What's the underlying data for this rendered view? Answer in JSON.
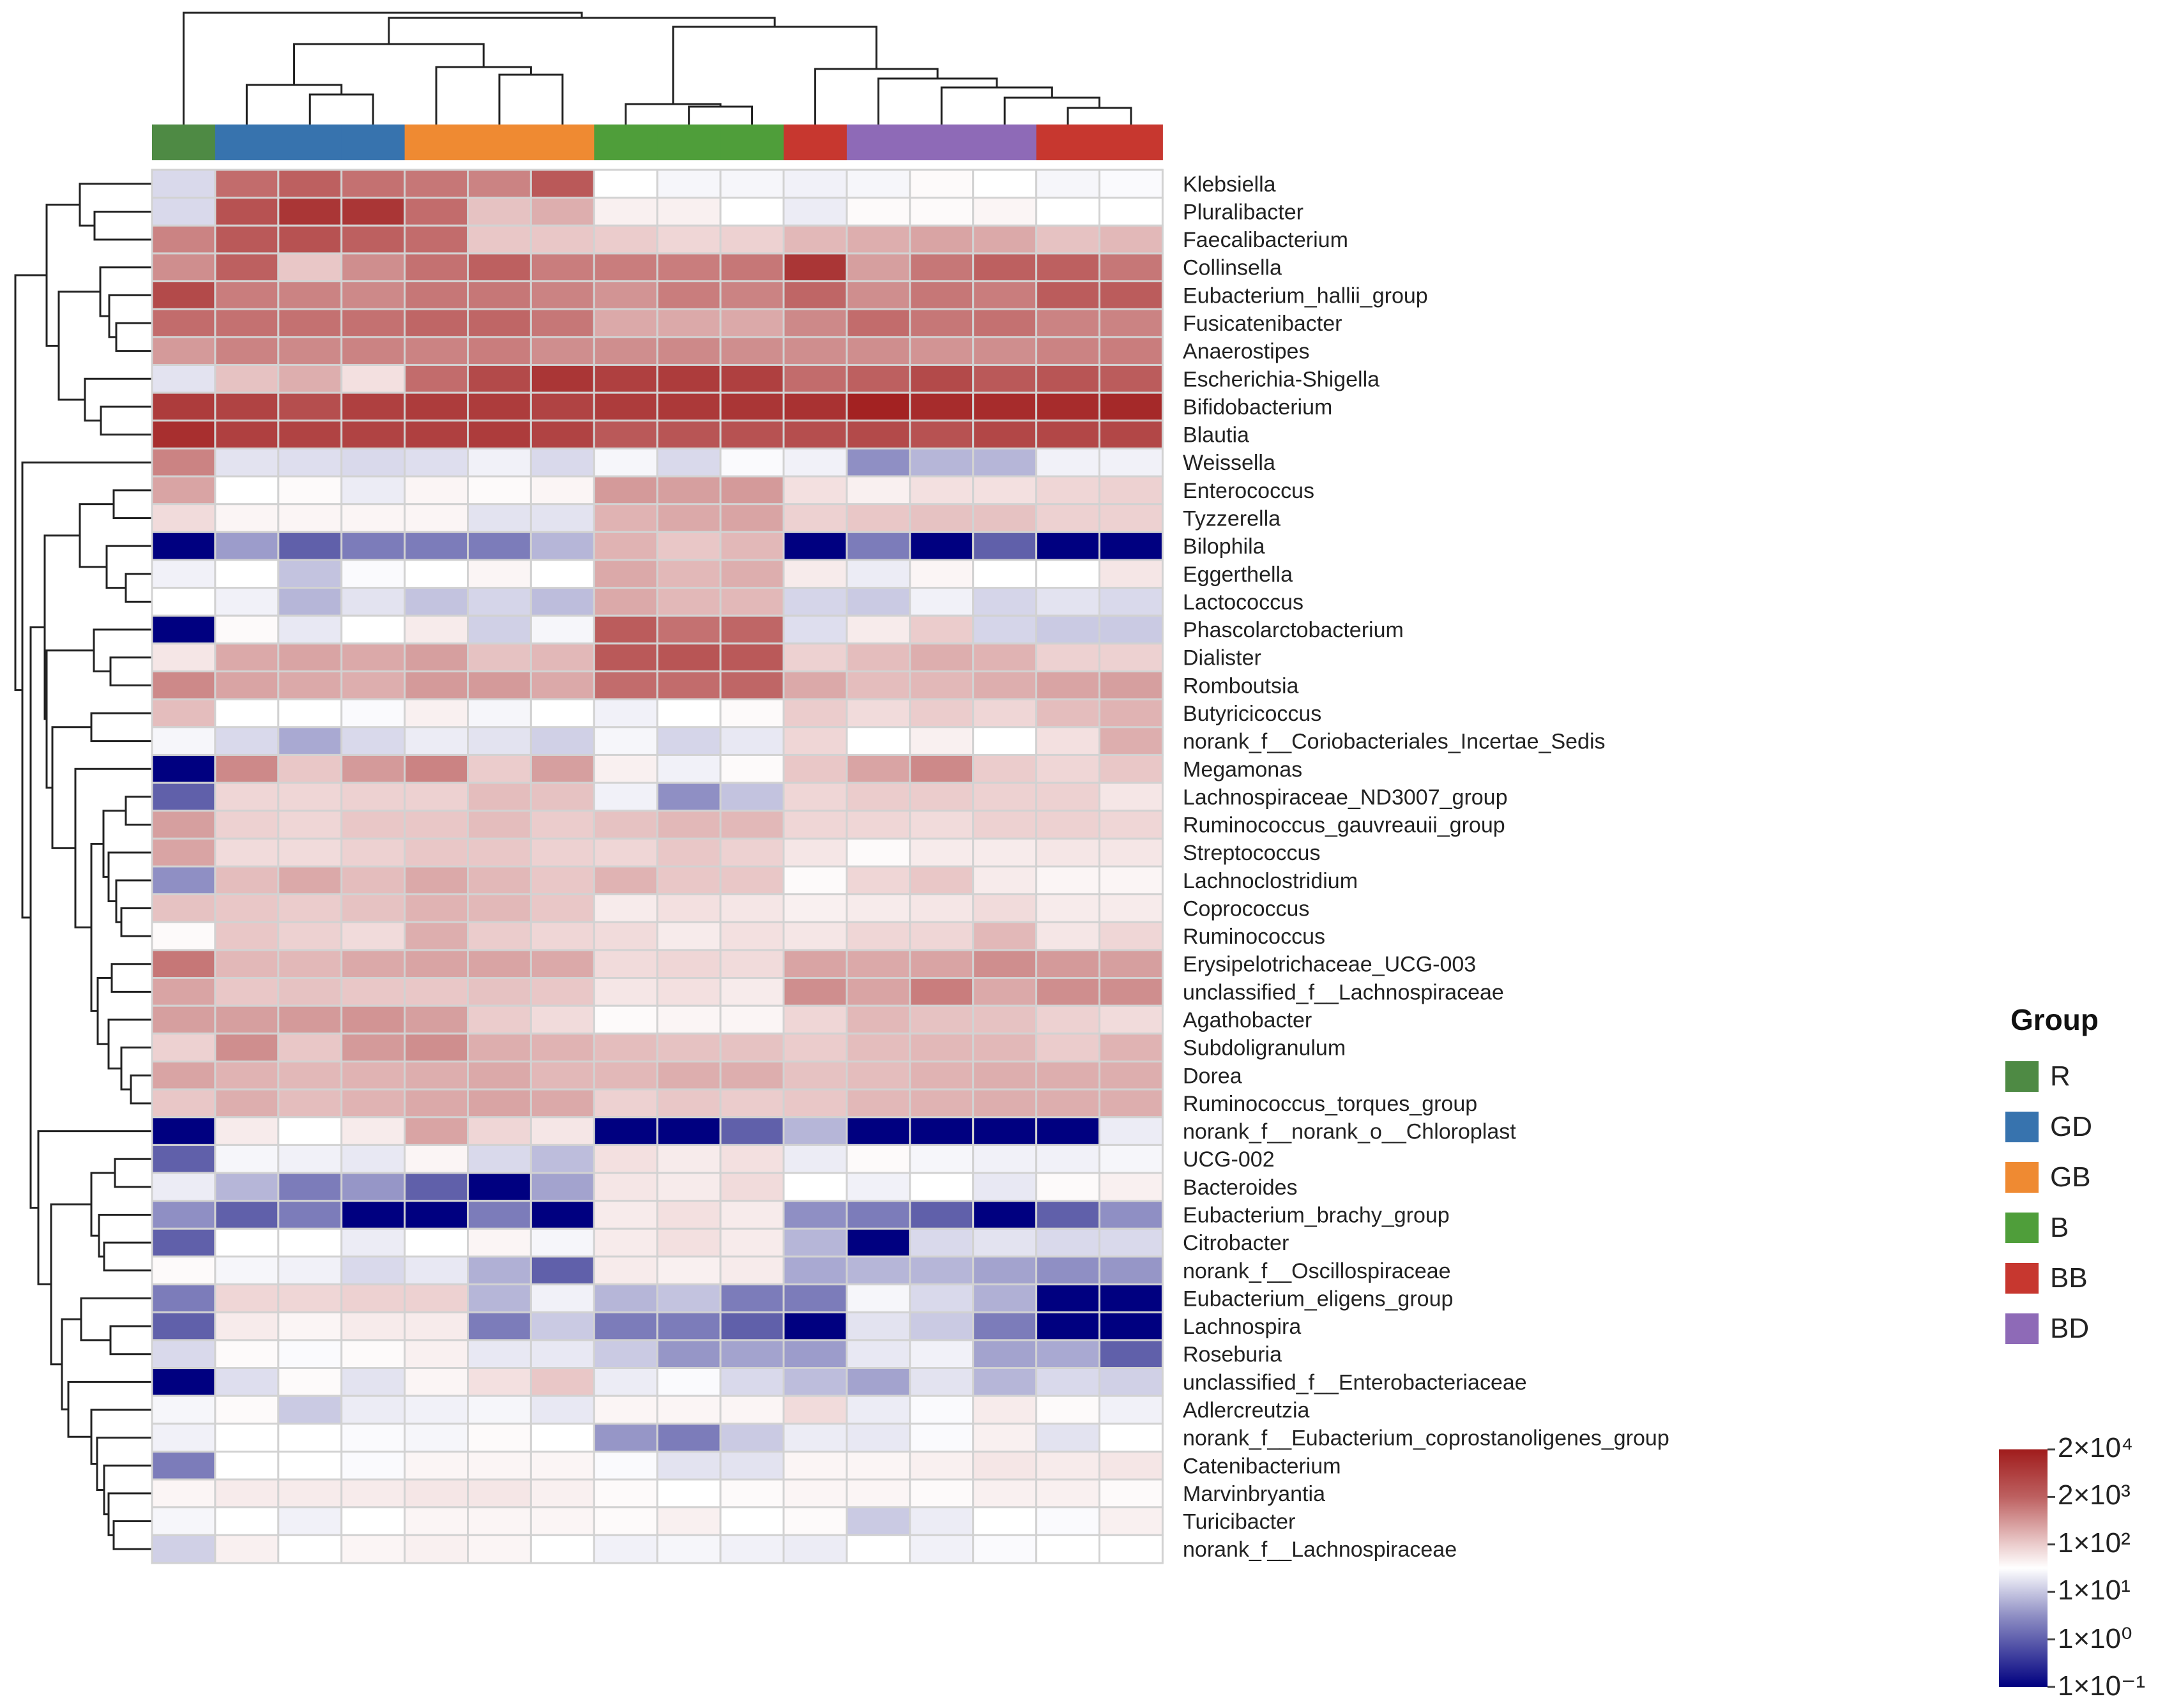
{
  "chart_data": {
    "type": "heatmap",
    "title": "",
    "value_encoding": "colorbar position (0 = 1×10⁻¹, 1 = 1×10⁰, 2 = 1×10¹, 3 = 1×10², 4 = 2×10³, 5 = 2×10⁴)",
    "colorbar_ticks": [
      "2×10⁴",
      "2×10³",
      "1×10²",
      "1×10¹",
      "1×10⁰",
      "1×10⁻¹"
    ],
    "colorbar_low": "#000080",
    "colorbar_mid": "#ffffff",
    "colorbar_high": "#a01c1c",
    "legend_title": "Group",
    "groups": [
      {
        "name": "R",
        "color": "#4e8a44"
      },
      {
        "name": "GD",
        "color": "#3773ae"
      },
      {
        "name": "GB",
        "color": "#ef8a32"
      },
      {
        "name": "B",
        "color": "#4f9e3a"
      },
      {
        "name": "BB",
        "color": "#c7372f"
      },
      {
        "name": "BD",
        "color": "#8e6ab7"
      }
    ],
    "column_groups": [
      "R",
      "GD",
      "GD",
      "GD",
      "GB",
      "GB",
      "GB",
      "B",
      "B",
      "B",
      "BB",
      "BD",
      "BD",
      "BD",
      "BB",
      "BB"
    ],
    "rows": [
      "Klebsiella",
      "Pluralibacter",
      "Faecalibacterium",
      "Collinsella",
      "Eubacterium_hallii_group",
      "Fusicatenibacter",
      "Anaerostipes",
      "Escherichia-Shigella",
      "Bifidobacterium",
      "Blautia",
      "Weissella",
      "Enterococcus",
      "Tyzzerella",
      "Bilophila",
      "Eggerthella",
      "Lactococcus",
      "Phascolarctobacterium",
      "Dialister",
      "Romboutsia",
      "Butyricicoccus",
      "norank_f__Coriobacteriales_Incertae_Sedis",
      "Megamonas",
      "Lachnospiraceae_ND3007_group",
      "Ruminococcus_gauvreauii_group",
      "Streptococcus",
      "Lachnoclostridium",
      "Coprococcus",
      "Ruminococcus",
      "Erysipelotrichaceae_UCG-003",
      "unclassified_f__Lachnospiraceae",
      "Agathobacter",
      "Subdoligranulum",
      "Dorea",
      "Ruminococcus_torques_group",
      "norank_f__norank_o__Chloroplast",
      "UCG-002",
      "Bacteroides",
      "Eubacterium_brachy_group",
      "Citrobacter",
      "norank_f__Oscillospiraceae",
      "Eubacterium_eligens_group",
      "Lachnospira",
      "Roseburia",
      "unclassified_f__Enterobacteriaceae",
      "Adlercreutzia",
      "norank_f__Eubacterium_coprostanoligenes_group",
      "Catenibacterium",
      "Marvinbryantia",
      "Turicibacter",
      "norank_f__Lachnospiraceae"
    ],
    "values": [
      [
        2.1,
        3.9,
        4.0,
        3.85,
        3.8,
        3.7,
        4.1,
        2.5,
        2.4,
        2.4,
        2.35,
        2.4,
        2.55,
        2.5,
        2.4,
        2.45
      ],
      [
        2.1,
        4.2,
        4.6,
        4.6,
        3.9,
        3.1,
        3.3,
        2.65,
        2.65,
        2.5,
        2.3,
        2.55,
        2.55,
        2.6,
        2.5,
        2.5
      ],
      [
        3.7,
        4.1,
        4.2,
        4.0,
        3.9,
        3.05,
        3.05,
        3.0,
        2.9,
        2.95,
        3.2,
        3.3,
        3.4,
        3.35,
        3.1,
        3.2
      ],
      [
        3.6,
        4.0,
        3.05,
        3.6,
        3.85,
        4.0,
        3.75,
        3.75,
        3.75,
        3.8,
        4.6,
        3.45,
        3.8,
        4.0,
        4.0,
        3.8
      ],
      [
        4.3,
        3.75,
        3.7,
        3.65,
        3.8,
        3.8,
        3.7,
        3.55,
        3.75,
        3.7,
        3.95,
        3.6,
        3.8,
        3.75,
        4.05,
        4.05
      ],
      [
        3.9,
        3.85,
        3.85,
        3.85,
        3.95,
        3.95,
        3.8,
        3.35,
        3.35,
        3.35,
        3.65,
        3.9,
        3.8,
        3.85,
        3.7,
        3.7
      ],
      [
        3.5,
        3.7,
        3.65,
        3.7,
        3.7,
        3.75,
        3.6,
        3.6,
        3.65,
        3.6,
        3.6,
        3.6,
        3.55,
        3.6,
        3.7,
        3.75
      ],
      [
        2.2,
        3.1,
        3.3,
        2.8,
        3.9,
        4.3,
        4.6,
        4.45,
        4.5,
        4.45,
        3.9,
        4.0,
        4.3,
        4.1,
        4.15,
        4.05
      ],
      [
        4.5,
        4.4,
        4.25,
        4.45,
        4.5,
        4.5,
        4.4,
        4.5,
        4.55,
        4.6,
        4.65,
        4.9,
        4.75,
        4.75,
        4.75,
        4.8
      ],
      [
        4.7,
        4.45,
        4.4,
        4.4,
        4.45,
        4.5,
        4.4,
        4.1,
        4.15,
        4.2,
        4.25,
        4.3,
        4.2,
        4.35,
        4.35,
        4.35
      ],
      [
        3.7,
        2.2,
        2.15,
        2.1,
        2.15,
        2.35,
        2.1,
        2.4,
        2.1,
        2.45,
        2.35,
        1.5,
        1.8,
        1.8,
        2.35,
        2.35
      ],
      [
        3.4,
        2.5,
        2.55,
        2.3,
        2.6,
        2.55,
        2.6,
        3.5,
        3.45,
        3.5,
        2.8,
        2.65,
        2.8,
        2.8,
        2.9,
        2.95
      ],
      [
        2.85,
        2.6,
        2.6,
        2.6,
        2.6,
        2.2,
        2.2,
        3.25,
        3.35,
        3.4,
        2.95,
        3.05,
        3.1,
        3.1,
        2.95,
        2.95
      ],
      [
        0,
        1.6,
        1.0,
        1.3,
        1.3,
        1.3,
        1.8,
        3.25,
        3.05,
        3.2,
        0,
        1.3,
        0,
        1.0,
        0,
        0
      ],
      [
        2.35,
        2.5,
        1.9,
        2.45,
        2.5,
        2.6,
        2.5,
        3.35,
        3.2,
        3.3,
        2.7,
        2.3,
        2.6,
        2.5,
        2.5,
        2.75
      ],
      [
        2.5,
        2.35,
        1.8,
        2.2,
        1.9,
        2.05,
        1.85,
        3.35,
        3.2,
        3.2,
        2.05,
        1.95,
        2.35,
        2.05,
        2.2,
        2.1
      ],
      [
        0,
        2.55,
        2.25,
        2.5,
        2.7,
        2.0,
        2.4,
        4.05,
        3.85,
        3.95,
        2.15,
        2.7,
        3.0,
        2.05,
        1.95,
        1.95
      ],
      [
        2.75,
        3.35,
        3.4,
        3.35,
        3.45,
        3.1,
        3.2,
        4.1,
        4.15,
        4.1,
        2.95,
        3.15,
        3.3,
        3.25,
        2.95,
        2.95
      ],
      [
        3.65,
        3.4,
        3.35,
        3.3,
        3.5,
        3.5,
        3.35,
        3.9,
        3.9,
        3.95,
        3.35,
        3.15,
        3.2,
        3.3,
        3.4,
        3.45
      ],
      [
        3.15,
        2.5,
        2.5,
        2.45,
        2.65,
        2.4,
        2.5,
        2.35,
        2.5,
        2.55,
        3.0,
        2.85,
        3.0,
        2.9,
        3.15,
        3.25
      ],
      [
        2.4,
        2.1,
        1.7,
        2.1,
        2.3,
        2.2,
        2.0,
        2.4,
        2.05,
        2.25,
        2.9,
        2.5,
        2.65,
        2.5,
        2.8,
        3.3
      ],
      [
        0,
        3.65,
        3.05,
        3.5,
        3.7,
        3.0,
        3.45,
        2.65,
        2.35,
        2.55,
        3.05,
        3.4,
        3.65,
        3.0,
        2.9,
        3.05
      ],
      [
        1.0,
        2.9,
        2.9,
        2.95,
        2.95,
        3.15,
        3.1,
        2.35,
        1.5,
        1.9,
        2.9,
        3.0,
        3.0,
        2.95,
        2.95,
        2.75
      ],
      [
        3.45,
        2.95,
        2.9,
        3.05,
        3.05,
        3.15,
        3.0,
        3.1,
        3.2,
        3.2,
        2.9,
        2.9,
        2.85,
        2.95,
        2.95,
        2.9
      ],
      [
        3.4,
        2.85,
        2.85,
        2.95,
        3.05,
        3.05,
        2.95,
        2.9,
        3.05,
        2.95,
        2.75,
        2.55,
        2.7,
        2.7,
        2.75,
        2.75
      ],
      [
        1.5,
        3.15,
        3.35,
        3.15,
        3.35,
        3.2,
        3.05,
        3.25,
        3.05,
        3.05,
        2.55,
        2.9,
        3.05,
        2.7,
        2.6,
        2.6
      ],
      [
        3.1,
        3.05,
        3.0,
        3.1,
        3.25,
        3.2,
        3.05,
        2.7,
        2.8,
        2.75,
        2.65,
        2.7,
        2.75,
        2.85,
        2.7,
        2.7
      ],
      [
        2.55,
        3.05,
        2.95,
        2.85,
        3.3,
        3.0,
        2.9,
        2.85,
        2.7,
        2.8,
        2.75,
        2.9,
        2.9,
        3.2,
        2.75,
        2.9
      ],
      [
        3.8,
        3.2,
        3.2,
        3.35,
        3.4,
        3.4,
        3.35,
        2.85,
        2.9,
        2.85,
        3.4,
        3.35,
        3.4,
        3.6,
        3.5,
        3.45
      ],
      [
        3.4,
        3.05,
        3.1,
        3.05,
        3.05,
        3.1,
        3.05,
        2.75,
        2.8,
        2.7,
        3.6,
        3.4,
        3.75,
        3.35,
        3.6,
        3.6
      ],
      [
        3.45,
        3.45,
        3.5,
        3.55,
        3.45,
        3.0,
        2.85,
        2.55,
        2.6,
        2.6,
        2.9,
        3.2,
        3.1,
        3.1,
        2.95,
        2.85
      ],
      [
        2.95,
        3.6,
        3.05,
        3.5,
        3.6,
        3.3,
        3.25,
        3.15,
        3.1,
        3.1,
        3.0,
        3.15,
        3.2,
        3.2,
        3.0,
        3.25
      ],
      [
        3.4,
        3.25,
        3.2,
        3.25,
        3.3,
        3.35,
        3.2,
        3.2,
        3.3,
        3.3,
        3.1,
        3.15,
        3.25,
        3.3,
        3.3,
        3.3
      ],
      [
        3.05,
        3.3,
        3.15,
        3.25,
        3.35,
        3.4,
        3.35,
        2.95,
        3.05,
        3.0,
        3.05,
        3.2,
        3.25,
        3.3,
        3.3,
        3.3
      ],
      [
        0,
        2.7,
        2.5,
        2.7,
        3.4,
        2.9,
        2.75,
        0,
        0,
        1.0,
        1.8,
        0,
        0,
        0,
        0,
        2.3
      ],
      [
        1.0,
        2.4,
        2.35,
        2.25,
        2.6,
        2.1,
        1.85,
        2.8,
        2.7,
        2.8,
        2.3,
        2.55,
        2.4,
        2.35,
        2.35,
        2.4
      ],
      [
        2.3,
        1.8,
        1.3,
        1.55,
        1.0,
        0,
        1.65,
        2.75,
        2.7,
        2.85,
        2.5,
        2.35,
        2.5,
        2.25,
        2.55,
        2.65
      ],
      [
        1.5,
        1.0,
        1.3,
        0,
        0,
        1.3,
        0,
        2.7,
        2.8,
        2.7,
        1.5,
        1.3,
        1.0,
        0,
        1.0,
        1.5
      ],
      [
        1.0,
        2.5,
        2.5,
        2.3,
        2.5,
        2.6,
        2.4,
        2.7,
        2.8,
        2.7,
        1.8,
        0,
        2.1,
        2.2,
        2.1,
        2.1
      ],
      [
        2.55,
        2.4,
        2.35,
        2.1,
        2.25,
        1.75,
        1.0,
        2.7,
        2.65,
        2.7,
        1.7,
        1.8,
        1.8,
        1.65,
        1.5,
        1.55
      ],
      [
        1.3,
        2.9,
        2.9,
        2.95,
        2.95,
        1.8,
        2.35,
        1.8,
        1.9,
        1.3,
        1.3,
        2.4,
        2.1,
        1.75,
        0,
        0
      ],
      [
        1.0,
        2.7,
        2.6,
        2.7,
        2.7,
        1.3,
        1.95,
        1.3,
        1.3,
        1.0,
        0,
        2.2,
        1.95,
        1.3,
        0,
        0
      ],
      [
        2.1,
        2.55,
        2.45,
        2.55,
        2.65,
        2.25,
        2.25,
        1.95,
        1.55,
        1.65,
        1.6,
        2.25,
        2.35,
        1.65,
        1.7,
        1.0
      ],
      [
        0,
        2.15,
        2.55,
        2.2,
        2.6,
        2.8,
        3.05,
        2.3,
        2.45,
        2.1,
        1.85,
        1.65,
        2.2,
        1.8,
        2.1,
        2.0
      ],
      [
        2.4,
        2.55,
        1.95,
        2.3,
        2.35,
        2.4,
        2.25,
        2.6,
        2.6,
        2.6,
        2.85,
        2.3,
        2.45,
        2.7,
        2.55,
        2.35
      ],
      [
        2.35,
        2.5,
        2.5,
        2.45,
        2.4,
        2.55,
        2.5,
        1.55,
        1.3,
        1.95,
        2.3,
        2.25,
        2.45,
        2.65,
        2.2,
        2.5
      ],
      [
        1.3,
        2.5,
        2.5,
        2.45,
        2.6,
        2.6,
        2.6,
        2.45,
        2.2,
        2.2,
        2.6,
        2.6,
        2.65,
        2.75,
        2.7,
        2.75
      ],
      [
        2.6,
        2.7,
        2.7,
        2.7,
        2.75,
        2.75,
        2.65,
        2.55,
        2.5,
        2.55,
        2.6,
        2.6,
        2.55,
        2.65,
        2.65,
        2.55
      ],
      [
        2.4,
        2.5,
        2.35,
        2.5,
        2.6,
        2.6,
        2.6,
        2.55,
        2.65,
        2.5,
        2.55,
        1.95,
        2.3,
        2.5,
        2.45,
        2.65
      ],
      [
        2.0,
        2.65,
        2.5,
        2.6,
        2.65,
        2.6,
        2.5,
        2.35,
        2.4,
        2.35,
        2.3,
        2.5,
        2.35,
        2.45,
        2.5,
        2.5
      ]
    ]
  }
}
